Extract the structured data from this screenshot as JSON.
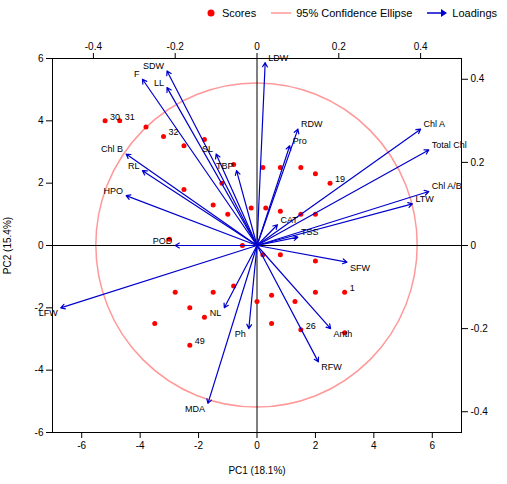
{
  "chart_data": {
    "type": "biplot",
    "title": "",
    "xlabel": "PC1 (18.1%)",
    "ylabel": "PC2 (15.4%)",
    "xlim": [
      -7,
      7
    ],
    "ylim": [
      -6,
      6
    ],
    "xticks": [
      -6,
      -4,
      -2,
      0,
      2,
      4,
      6
    ],
    "yticks": [
      -6,
      -4,
      -2,
      0,
      2,
      4,
      6
    ],
    "x2lim": [
      -0.5,
      0.5
    ],
    "y2lim": [
      -0.45,
      0.45
    ],
    "x2ticks": [
      -0.4,
      -0.2,
      0,
      0.2,
      0.4
    ],
    "y2ticks": [
      -0.4,
      -0.2,
      0,
      0.2,
      0.4
    ],
    "legend": "upper right",
    "series": [
      {
        "name": "Scores",
        "type": "scatter",
        "color": "#FF0000",
        "marker": "circle",
        "x": [
          -5.2,
          -4.7,
          -3.8,
          -3.2,
          -2.5,
          -1.8,
          -1.2,
          -0.8,
          0.2,
          0.8,
          1.5,
          2.0,
          2.5,
          -2.5,
          -1.5,
          -1.0,
          -0.2,
          0.3,
          0.8,
          1.5,
          2.0,
          -3.0,
          -0.5,
          0.2,
          0.8,
          2.0,
          -2.8,
          -2.3,
          -1.8,
          -1.5,
          -0.8,
          0.0,
          0.5,
          1.3,
          2.0,
          3.0,
          -3.5,
          -2.3,
          0.5,
          1.5,
          3.0
        ],
        "y": [
          4.0,
          4.0,
          3.8,
          3.5,
          3.2,
          3.4,
          2.0,
          2.6,
          2.5,
          2.5,
          2.5,
          2.3,
          2.0,
          1.8,
          1.3,
          1.0,
          1.2,
          1.2,
          1.1,
          1.0,
          1.0,
          0.2,
          0.0,
          -0.3,
          -0.3,
          -0.5,
          -1.5,
          -2.0,
          -2.3,
          -1.5,
          -1.3,
          -1.8,
          -1.6,
          -1.8,
          -1.5,
          -1.5,
          -2.5,
          -3.2,
          -2.5,
          -2.7,
          -2.8
        ]
      },
      {
        "name": "95% Confidence Ellipse",
        "type": "ellipse",
        "color": "#FF9999",
        "center": [
          0,
          0
        ],
        "semi_axes": [
          5.5,
          5.2
        ]
      },
      {
        "name": "Loadings",
        "type": "arrow",
        "axis": "y2",
        "color": "#0000CC",
        "origin": [
          0,
          0
        ],
        "labels": [
          "SDW",
          "F",
          "LL",
          "LDW",
          "RDW",
          "SL",
          "TBP",
          "Chl B",
          "RL",
          "HPO",
          "CAT",
          "TSS",
          "POD",
          "SFW",
          "LTW",
          "Chl A/B",
          "Chl A",
          "Total Chl",
          "Pro",
          "NL",
          "Ph",
          "Anth",
          "LFW",
          "RFW",
          "MDA"
        ],
        "x": [
          -0.22,
          -0.28,
          -0.22,
          0.02,
          0.1,
          -0.1,
          -0.05,
          -0.32,
          -0.28,
          -0.32,
          0.05,
          0.1,
          -0.2,
          0.22,
          0.38,
          0.42,
          0.4,
          0.42,
          0.08,
          -0.08,
          -0.02,
          0.18,
          -0.48,
          0.15,
          -0.12
        ],
        "y": [
          0.42,
          0.4,
          0.38,
          0.44,
          0.28,
          0.22,
          0.18,
          0.22,
          0.18,
          0.12,
          0.05,
          0.02,
          0.0,
          -0.04,
          0.1,
          0.13,
          0.28,
          0.23,
          0.24,
          -0.15,
          -0.2,
          -0.2,
          -0.15,
          -0.28,
          -0.38
        ]
      }
    ],
    "annotations": [
      {
        "text": "30",
        "x": -5.2,
        "y": 4.0
      },
      {
        "text": "31",
        "x": -4.7,
        "y": 4.0
      },
      {
        "text": "32",
        "x": -3.2,
        "y": 3.5
      },
      {
        "text": "19",
        "x": 2.5,
        "y": 2.0
      },
      {
        "text": "49",
        "x": -2.3,
        "y": -3.2
      },
      {
        "text": "1",
        "x": 3.0,
        "y": -1.5
      },
      {
        "text": "26",
        "x": 1.5,
        "y": -2.7
      }
    ]
  }
}
